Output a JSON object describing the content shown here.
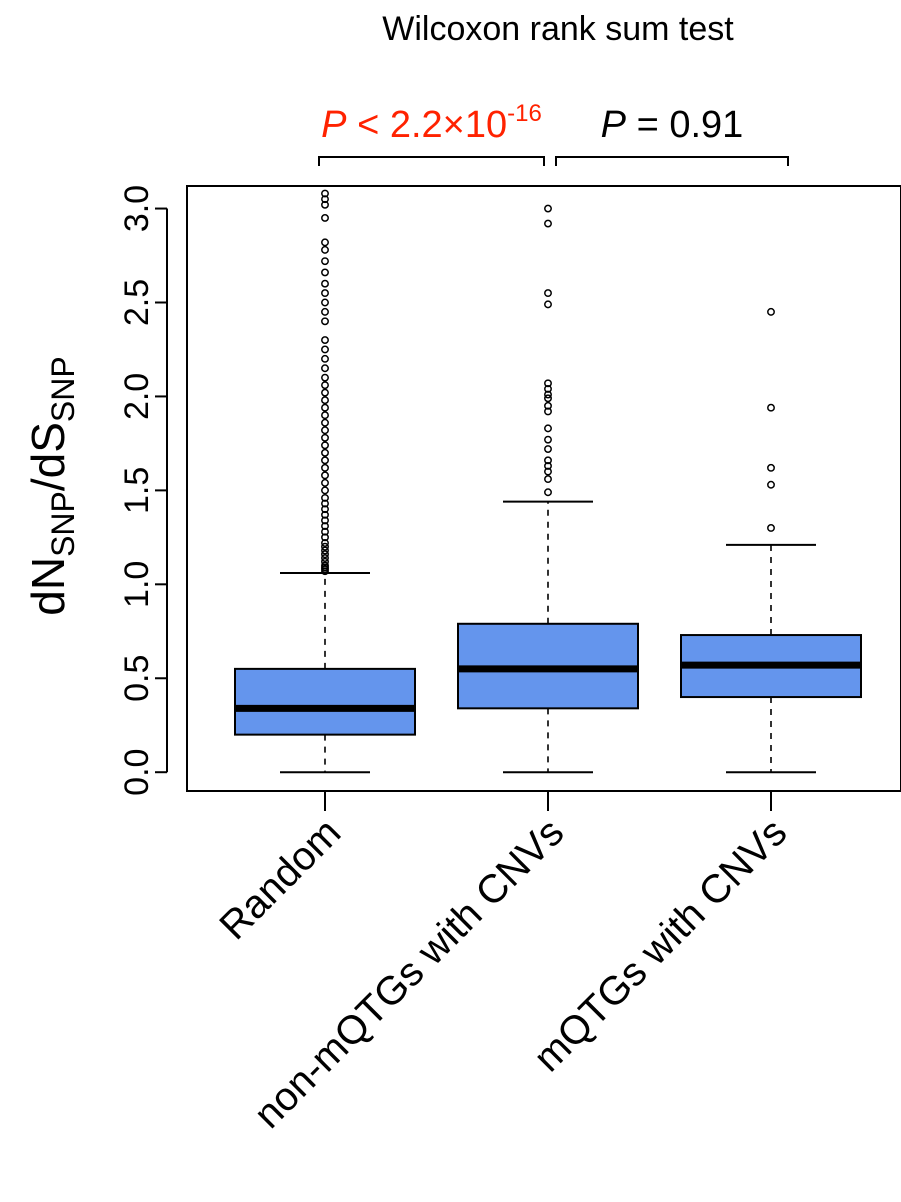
{
  "chart_data": {
    "type": "boxplot",
    "title": "Wilcoxon rank sum test",
    "ylabel": {
      "main1": "dN",
      "sub1": "SNP",
      "main2": "/dS",
      "sub2": "SNP"
    },
    "ylim": [
      -0.1,
      3.12
    ],
    "yticks": [
      0.0,
      0.5,
      1.0,
      1.5,
      2.0,
      2.5,
      3.0
    ],
    "ytick_labels": [
      "0.0",
      "0.5",
      "1.0",
      "1.5",
      "2.0",
      "2.5",
      "3.0"
    ],
    "grid": false,
    "box_color": "#6495ED",
    "categories": [
      "Random",
      "non-mQTGs with CNVs",
      "mQTGs with CNVs"
    ],
    "boxes": [
      {
        "name": "Random",
        "whisker_low": 0.0,
        "q1": 0.2,
        "median": 0.34,
        "q3": 0.55,
        "whisker_high": 1.06,
        "outliers": [
          1.07,
          1.08,
          1.09,
          1.1,
          1.12,
          1.14,
          1.16,
          1.18,
          1.2,
          1.22,
          1.25,
          1.28,
          1.31,
          1.34,
          1.37,
          1.4,
          1.43,
          1.46,
          1.5,
          1.54,
          1.58,
          1.62,
          1.66,
          1.7,
          1.74,
          1.78,
          1.82,
          1.86,
          1.9,
          1.94,
          1.98,
          2.02,
          2.06,
          2.1,
          2.15,
          2.2,
          2.25,
          2.3,
          2.4,
          2.45,
          2.5,
          2.55,
          2.6,
          2.66,
          2.72,
          2.78,
          2.82,
          2.95,
          3.02,
          3.05,
          3.08
        ]
      },
      {
        "name": "non-mQTGs with CNVs",
        "whisker_low": 0.0,
        "q1": 0.34,
        "median": 0.55,
        "q3": 0.79,
        "whisker_high": 1.44,
        "outliers": [
          1.49,
          1.56,
          1.6,
          1.63,
          1.66,
          1.72,
          1.77,
          1.83,
          1.92,
          1.95,
          1.99,
          2.01,
          2.04,
          2.07,
          2.49,
          2.55,
          2.92,
          3.0
        ]
      },
      {
        "name": "mQTGs with CNVs",
        "whisker_low": 0.0,
        "q1": 0.4,
        "median": 0.57,
        "q3": 0.73,
        "whisker_high": 1.21,
        "outliers": [
          1.3,
          1.53,
          1.62,
          1.94,
          2.45
        ]
      }
    ],
    "annotations": [
      {
        "from": 0,
        "to": 1,
        "p_label": "P",
        "relation": " < ",
        "value": "2.2×10",
        "exponent": "-16",
        "color": "#FF2200"
      },
      {
        "from": 1,
        "to": 2,
        "p_label": "P",
        "relation": " = ",
        "value": "0.91",
        "exponent": "",
        "color": "#000000"
      }
    ]
  }
}
